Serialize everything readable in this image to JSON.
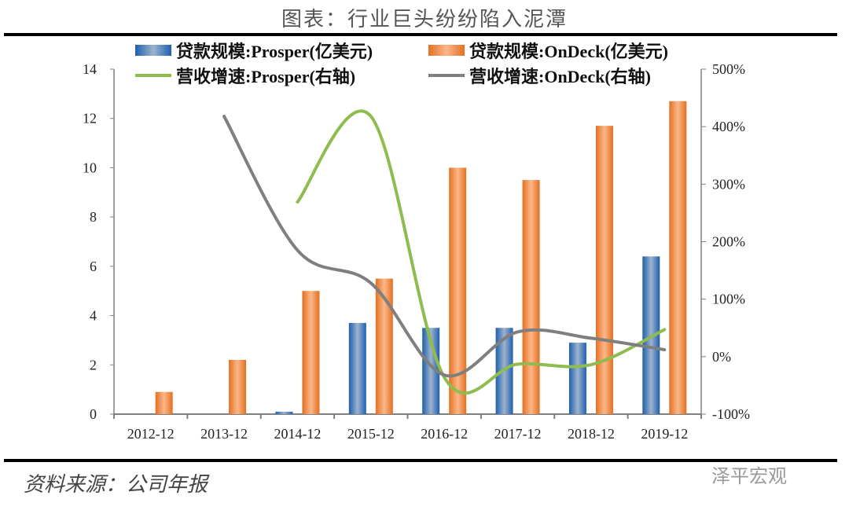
{
  "title": "图表：行业巨头纷纷陷入泥潭",
  "source": "资料来源：公司年报",
  "watermark": "泽平宏观",
  "chart_data": {
    "type": "bar+line",
    "categories": [
      "2012-12",
      "2013-12",
      "2014-12",
      "2015-12",
      "2016-12",
      "2017-12",
      "2018-12",
      "2019-12"
    ],
    "y_left": {
      "range": [
        0,
        14
      ],
      "ticks": [
        "0",
        "2",
        "4",
        "6",
        "8",
        "10",
        "12",
        "14"
      ]
    },
    "y_right": {
      "range": [
        -100,
        500
      ],
      "ticks": [
        "-100%",
        "0%",
        "100%",
        "200%",
        "300%",
        "400%",
        "500%"
      ]
    },
    "grid": false,
    "legend_placement": "top",
    "series": [
      {
        "name": "贷款规模:Prosper(亿美元)",
        "type": "bar",
        "axis": "left",
        "color": "#2e6db8",
        "values": [
          null,
          null,
          0.1,
          3.7,
          3.5,
          3.5,
          2.9,
          6.4
        ]
      },
      {
        "name": "贷款规模:OnDeck(亿美元)",
        "type": "bar",
        "axis": "left",
        "color": "#ed7d31",
        "values": [
          0.9,
          2.2,
          5.0,
          5.5,
          10.0,
          9.5,
          11.7,
          12.7
        ]
      },
      {
        "name": "营收增速:Prosper(右轴)",
        "type": "line",
        "axis": "right",
        "color": "#8fbc4f",
        "values": [
          null,
          null,
          269,
          418,
          -36,
          -13,
          -14,
          47
        ]
      },
      {
        "name": "营收增速:OnDeck(右轴)",
        "type": "line",
        "axis": "right",
        "color": "#7f7f7f",
        "values": [
          null,
          418,
          185,
          128,
          -32,
          43,
          32,
          12
        ]
      }
    ]
  }
}
